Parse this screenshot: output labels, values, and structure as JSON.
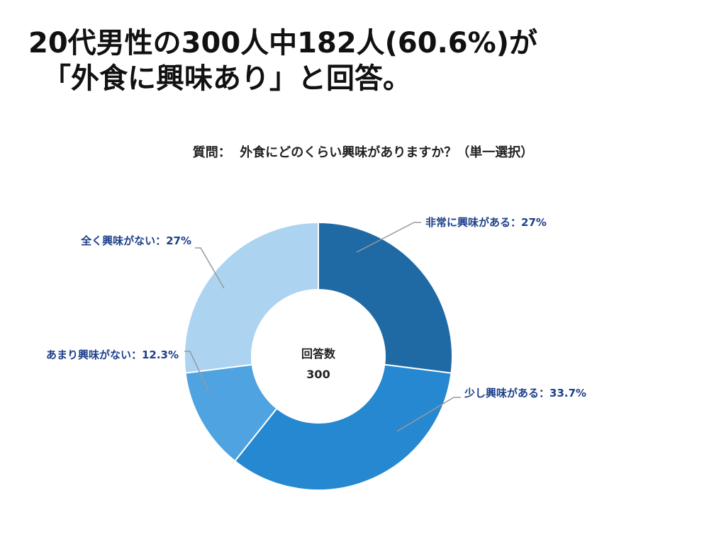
{
  "headline": {
    "line1": "20代男性の300人中182人(60.6%)が",
    "line2": "「外食に興味あり」と回答。"
  },
  "question": "質問：  外食にどのくらい興味がありますか？（単一選択）",
  "center": {
    "label": "回答数",
    "value": "300"
  },
  "chart_data": {
    "type": "pie",
    "donut": true,
    "categories": [
      "非常に興味がある",
      "少し興味がある",
      "あまり興味がない",
      "全く興味がない"
    ],
    "values": [
      27,
      33.7,
      12.3,
      27
    ],
    "labels": [
      "非常に興味がある：27%",
      "少し興味がある：33.7%",
      "あまり興味がない：12.3%",
      "全く興味がない：27%"
    ],
    "colors": [
      "#1f6aa5",
      "#2588d0",
      "#4fa3e0",
      "#acd4f0"
    ],
    "label_color": "#1c3f8a",
    "leader_color": "#999999",
    "start": "top",
    "direction": "clockwise"
  }
}
